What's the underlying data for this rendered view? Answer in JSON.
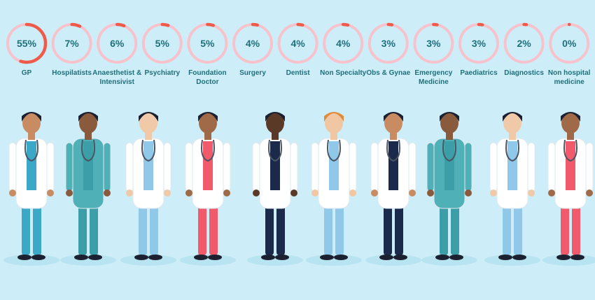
{
  "chart_data": {
    "type": "donut-rings",
    "colors": {
      "accent": "#f05a4a",
      "track": "#f6c3cd",
      "text": "#1f6f7a",
      "background": "#cdeef8"
    },
    "items": [
      {
        "label": "GP",
        "value": 55,
        "display": "55%"
      },
      {
        "label": "Hospilatists",
        "value": 7,
        "display": "7%"
      },
      {
        "label": "Anaesthetist & Intensivist",
        "value": 6,
        "display": "6%"
      },
      {
        "label": "Psychiatry",
        "value": 5,
        "display": "5%"
      },
      {
        "label": "Foundation Doctor",
        "value": 5,
        "display": "5%"
      },
      {
        "label": "Surgery",
        "value": 4,
        "display": "4%"
      },
      {
        "label": "Dentist",
        "value": 4,
        "display": "4%"
      },
      {
        "label": "Non Specialty",
        "value": 4,
        "display": "4%"
      },
      {
        "label": "Obs & Gynae",
        "value": 3,
        "display": "3%"
      },
      {
        "label": "Emergency Medicine",
        "value": 3,
        "display": "3%"
      },
      {
        "label": "Paediatrics",
        "value": 3,
        "display": "3%"
      },
      {
        "label": "Diagnostics",
        "value": 2,
        "display": "2%"
      },
      {
        "label": "Non hospital medicine",
        "value": 0,
        "display": "0%"
      }
    ]
  },
  "illustration": {
    "figures": [
      {
        "icon": "male-doctor-icon",
        "coat": "#ffffff",
        "scrub": "#3aa8c6"
      },
      {
        "icon": "male-nurse-scrubs-icon",
        "coat": "#4fb0b8",
        "scrub": "#3c9ea6"
      },
      {
        "icon": "female-doctor-icon",
        "coat": "#ffffff",
        "scrub": "#8fc8e8"
      },
      {
        "icon": "female-doctor-icon",
        "coat": "#ffffff",
        "scrub": "#f05a6a"
      },
      {
        "icon": "male-doctor-icon",
        "coat": "#ffffff",
        "scrub": "#1b2a4a"
      },
      {
        "icon": "female-nurse-icon",
        "coat": "#ffffff",
        "scrub": "#8fc8e8"
      },
      {
        "icon": "male-doctor-icon",
        "coat": "#ffffff",
        "scrub": "#1b2a4a"
      },
      {
        "icon": "male-nurse-scrubs-icon",
        "coat": "#4fb0b8",
        "scrub": "#3c9ea6"
      },
      {
        "icon": "female-doctor-icon",
        "coat": "#ffffff",
        "scrub": "#8fc8e8"
      },
      {
        "icon": "female-doctor-icon",
        "coat": "#ffffff",
        "scrub": "#f05a6a"
      }
    ]
  }
}
